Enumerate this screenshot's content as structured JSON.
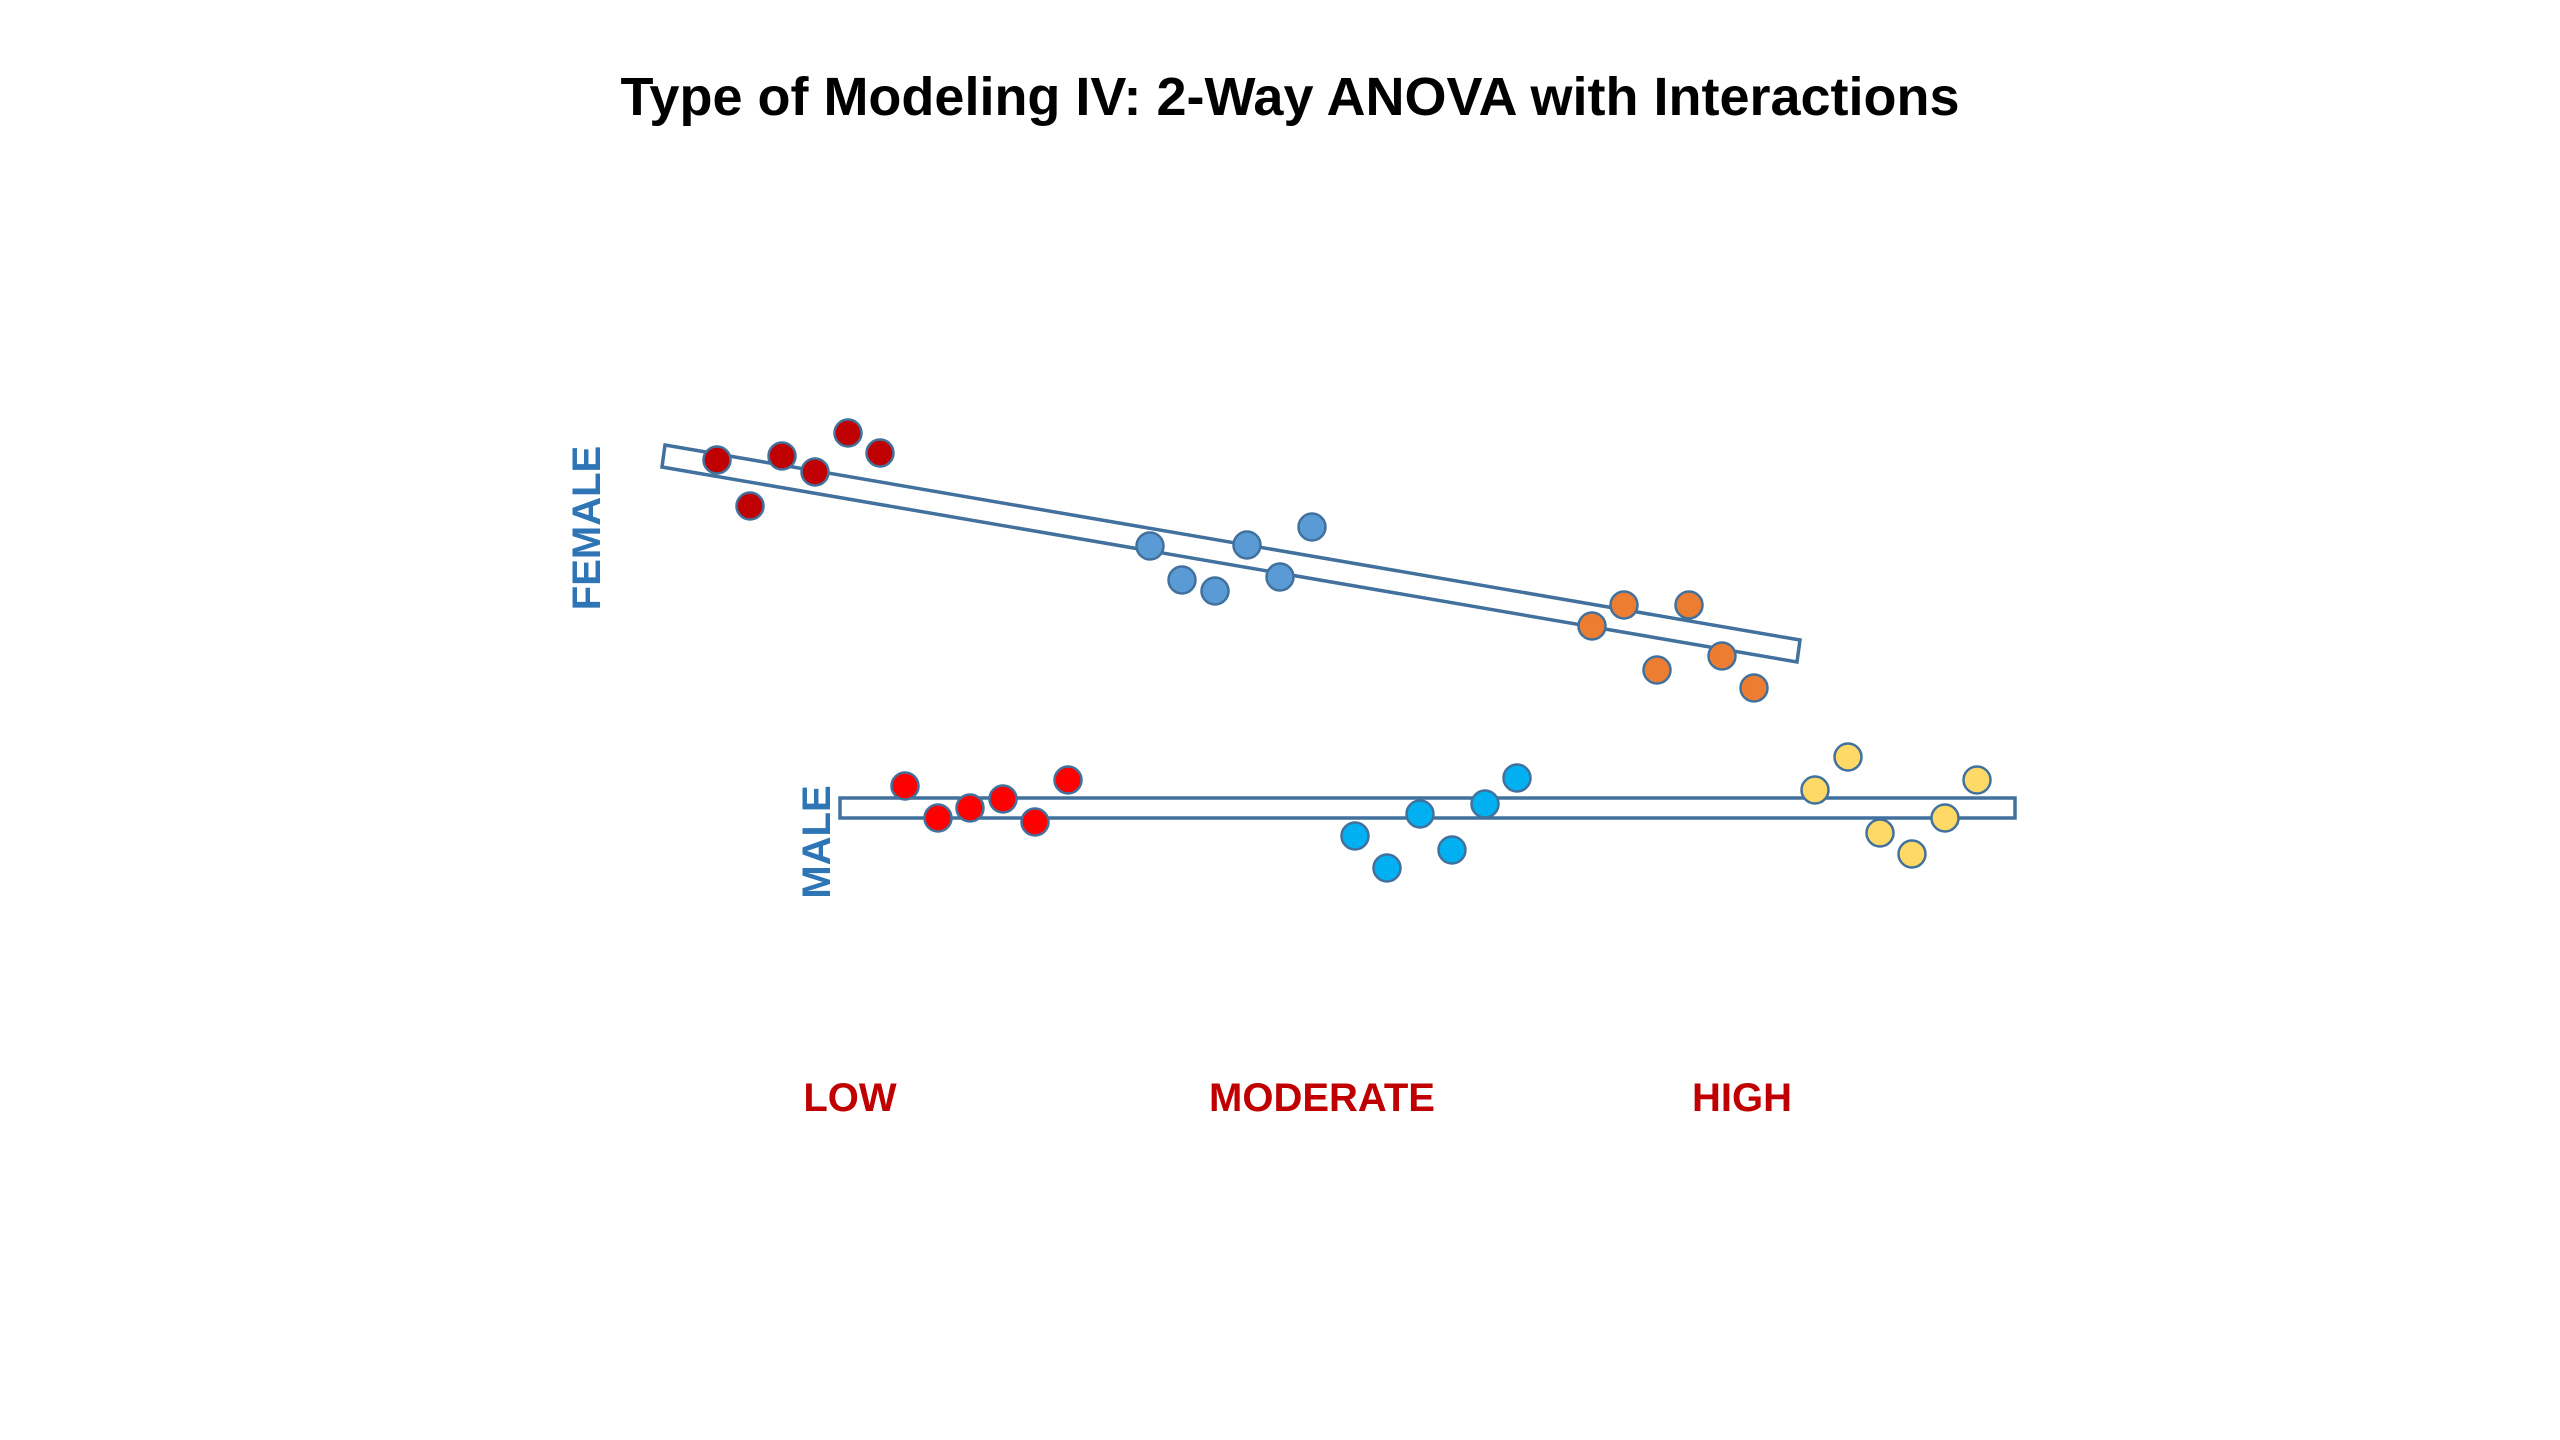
{
  "title": "Type of Modeling IV:  2-Way ANOVA with Interactions",
  "colors": {
    "band_stroke": "#41719C",
    "group_label": "#2E75B6",
    "level_label": "#C00000",
    "dot_stroke": "#41719C"
  },
  "groups": [
    {
      "label": "FEMALE",
      "clusters": [
        {
          "level": "LOW",
          "color": "#C00000",
          "count": 6
        },
        {
          "level": "MODERATE",
          "color": "#5B9BD5",
          "count": 6
        },
        {
          "level": "HIGH",
          "color": "#ED7D31",
          "count": 6
        }
      ]
    },
    {
      "label": "MALE",
      "clusters": [
        {
          "level": "LOW",
          "color": "#FF0000",
          "count": 6
        },
        {
          "level": "MODERATE",
          "color": "#00B0F0",
          "count": 6
        },
        {
          "level": "HIGH",
          "color": "#FFD966",
          "count": 6
        }
      ]
    }
  ],
  "levels": [
    "LOW",
    "MODERATE",
    "HIGH"
  ]
}
